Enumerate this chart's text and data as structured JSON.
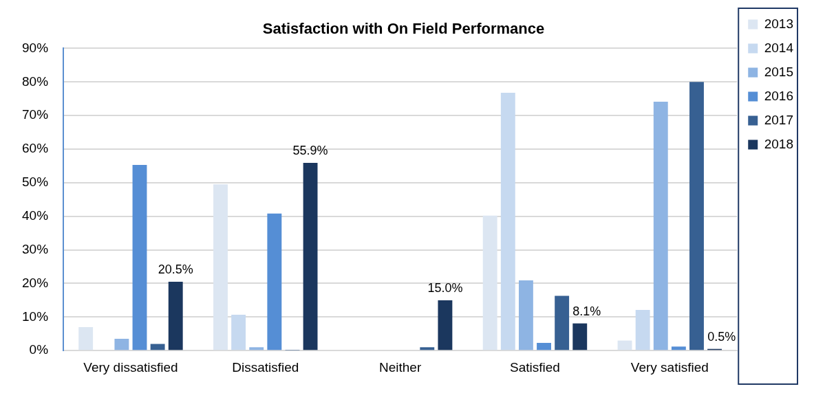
{
  "chart_data": {
    "type": "bar",
    "title": "Satisfaction with On Field Performance",
    "categories": [
      "Very dissatisfied",
      "Dissatisfied",
      "Neither",
      "Satisfied",
      "Very satisfied"
    ],
    "series": [
      {
        "name": "2013",
        "color": "#dce6f2",
        "values": [
          7.0,
          49.5,
          0,
          40.2,
          3.0
        ]
      },
      {
        "name": "2014",
        "color": "#c6d9f0",
        "values": [
          0.2,
          10.7,
          0,
          76.8,
          12.1
        ]
      },
      {
        "name": "2015",
        "color": "#8eb4e3",
        "values": [
          3.5,
          1.0,
          0,
          20.9,
          74.1
        ]
      },
      {
        "name": "2016",
        "color": "#558ed5",
        "values": [
          55.3,
          40.8,
          0,
          2.3,
          1.2
        ]
      },
      {
        "name": "2017",
        "color": "#376092",
        "values": [
          2.0,
          0.1,
          1.0,
          16.3,
          80.0
        ]
      },
      {
        "name": "2018",
        "color": "#1b375e",
        "values": [
          20.5,
          55.9,
          15.0,
          8.1,
          0.5
        ],
        "value_labels": [
          "20.5%",
          "55.9%",
          "15.0%",
          "8.1%",
          "0.5%"
        ]
      }
    ],
    "ylim": [
      0,
      90
    ],
    "yticks": [
      {
        "value": 0,
        "label": "0%"
      },
      {
        "value": 10,
        "label": "10%"
      },
      {
        "value": 20,
        "label": "20%"
      },
      {
        "value": 30,
        "label": "30%"
      },
      {
        "value": 40,
        "label": "40%"
      },
      {
        "value": 50,
        "label": "50%"
      },
      {
        "value": 60,
        "label": "60%"
      },
      {
        "value": 70,
        "label": "70%"
      },
      {
        "value": 80,
        "label": "80%"
      },
      {
        "value": 90,
        "label": "90%"
      }
    ],
    "grid": "y",
    "legend": "right"
  }
}
